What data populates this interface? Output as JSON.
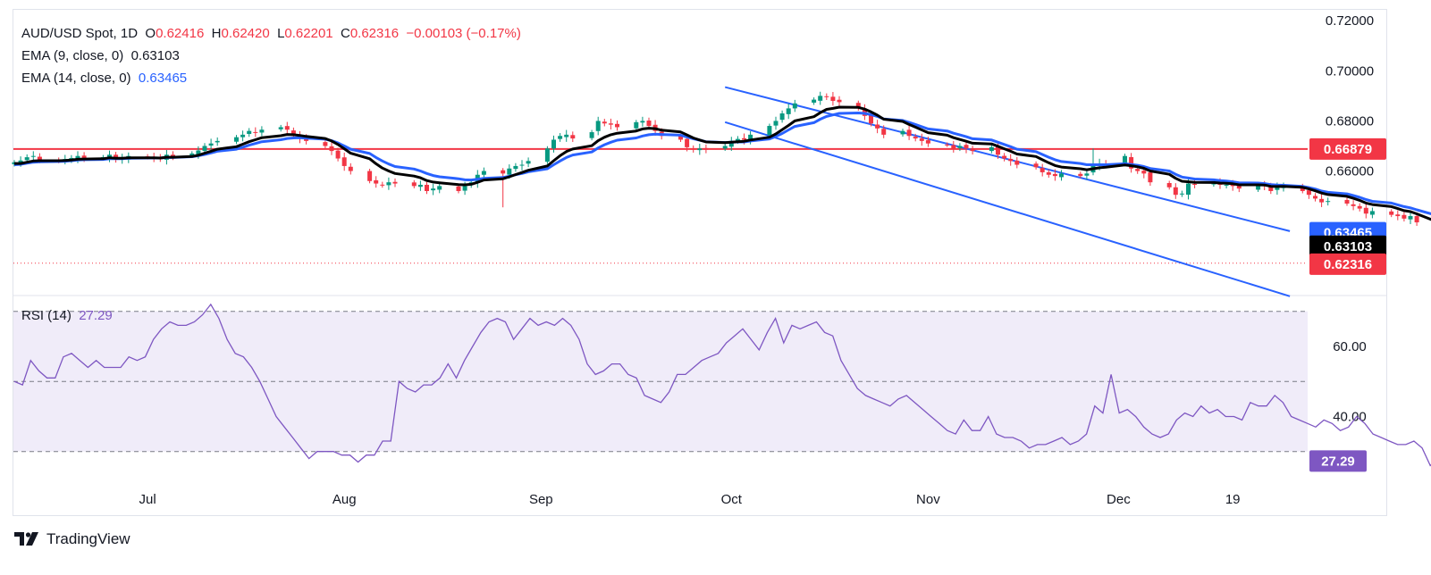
{
  "legend": {
    "symbol": "AUD/USD Spot, 1D",
    "o_label": "O",
    "o": "0.62416",
    "h_label": "H",
    "h": "0.62420",
    "l_label": "L",
    "l": "0.62201",
    "c_label": "C",
    "c": "0.62316",
    "change": "−0.00103 (−0.17%)",
    "ema9_label": "EMA (9, close, 0)",
    "ema9_value": "0.63103",
    "ema14_label": "EMA (14, close, 0)",
    "ema14_value": "0.63465",
    "rsi_label": "RSI (14)",
    "rsi_value": "27.29"
  },
  "price_axis": {
    "ticks": [
      "0.72000",
      "0.70000",
      "0.68000",
      "0.66000"
    ]
  },
  "rsi_axis": {
    "ticks": [
      "60.00",
      "40.00"
    ]
  },
  "x_axis": {
    "ticks": [
      "Jul",
      "Aug",
      "Sep",
      "Oct",
      "Nov",
      "Dec",
      "19"
    ]
  },
  "badges": {
    "resistance": "0.66879",
    "ema14": "0.63465",
    "ema9": "0.63103",
    "close": "0.62316",
    "rsi": "27.29"
  },
  "branding": {
    "name": "TradingView"
  },
  "colors": {
    "up": "#089981",
    "down": "#f23645",
    "ema9": "#000000",
    "ema14": "#2962ff",
    "channel": "#2962ff",
    "resistance": "#f23645",
    "rsi": "#7e57c2",
    "rsi_band": "#f0ecf9"
  },
  "chart_data": [
    {
      "type": "candlestick",
      "title": "AUD/USD Spot, 1D",
      "ylim": [
        0.611,
        0.724
      ],
      "x": [
        "2024-06-10",
        "2024-12-20"
      ],
      "closes": [
        0.6635,
        0.6642,
        0.6655,
        0.666,
        0.6645,
        0.664,
        0.6648,
        0.6652,
        0.666,
        0.665,
        0.6655,
        0.6665,
        0.6645,
        0.665,
        0.666,
        0.6655,
        0.6652,
        0.6648,
        0.6665,
        0.6658,
        0.667,
        0.6682,
        0.67,
        0.671,
        0.672,
        0.6735,
        0.6745,
        0.676,
        0.6755,
        0.6765,
        0.6775,
        0.6765,
        0.674,
        0.673,
        0.672,
        0.67,
        0.668,
        0.665,
        0.662,
        0.66,
        0.656,
        0.655,
        0.6545,
        0.6555,
        0.655,
        0.654,
        0.6545,
        0.652,
        0.653,
        0.654,
        0.652,
        0.654,
        0.6555,
        0.6585,
        0.66,
        0.659,
        0.661,
        0.662,
        0.6625,
        0.664,
        0.669,
        0.6725,
        0.674,
        0.6745,
        0.673,
        0.6755,
        0.68,
        0.679,
        0.6785,
        0.6775,
        0.6795,
        0.68,
        0.678,
        0.676,
        0.674,
        0.6725,
        0.6695,
        0.6685,
        0.669,
        0.6685,
        0.67,
        0.672,
        0.6728,
        0.6725,
        0.6745,
        0.678,
        0.68,
        0.683,
        0.685,
        0.687,
        0.6885,
        0.69,
        0.6895,
        0.688,
        0.6875,
        0.685,
        0.682,
        0.679,
        0.677,
        0.6745,
        0.676,
        0.674,
        0.673,
        0.672,
        0.671,
        0.6705,
        0.669,
        0.67,
        0.669,
        0.668,
        0.6695,
        0.6665,
        0.665,
        0.664,
        0.6625,
        0.6615,
        0.6595,
        0.6585,
        0.658,
        0.659,
        0.658,
        0.659,
        0.6625,
        0.663,
        0.6625,
        0.666,
        0.661,
        0.66,
        0.659,
        0.6555,
        0.6535,
        0.6505,
        0.651,
        0.655,
        0.6545,
        0.655,
        0.6545,
        0.6545,
        0.654,
        0.653,
        0.6545,
        0.654,
        0.652,
        0.6535,
        0.654,
        0.652,
        0.6505,
        0.649,
        0.6475,
        0.648,
        0.647,
        0.646,
        0.645,
        0.643,
        0.644,
        0.6425,
        0.642,
        0.641,
        0.642,
        0.6395,
        0.628,
        0.625,
        0.6242,
        0.6232
      ],
      "ema9": [
        0.663,
        0.663,
        0.6635,
        0.664,
        0.6641,
        0.6641,
        0.6642,
        0.6644,
        0.6647,
        0.6648,
        0.6649,
        0.6653,
        0.6651,
        0.6651,
        0.6653,
        0.6653,
        0.6653,
        0.6652,
        0.6655,
        0.6655,
        0.6658,
        0.6663,
        0.6671,
        0.6679,
        0.6687,
        0.6697,
        0.6707,
        0.6717,
        0.6725,
        0.6733,
        0.6741,
        0.6746,
        0.6745,
        0.6742,
        0.6738,
        0.673,
        0.672,
        0.6706,
        0.6689,
        0.6671,
        0.6649,
        0.6629,
        0.6612,
        0.66,
        0.659,
        0.658,
        0.6573,
        0.6562,
        0.6556,
        0.6553,
        0.6546,
        0.6545,
        0.6547,
        0.6555,
        0.6564,
        0.6569,
        0.6577,
        0.6586,
        0.6594,
        0.6603,
        0.662,
        0.6641,
        0.6661,
        0.6678,
        0.6688,
        0.6701,
        0.6721,
        0.6735,
        0.6745,
        0.6751,
        0.676,
        0.6768,
        0.6771,
        0.6769,
        0.6763,
        0.6756,
        0.6744,
        0.6732,
        0.6724,
        0.6716,
        0.6713,
        0.6715,
        0.6717,
        0.6719,
        0.6724,
        0.6735,
        0.6748,
        0.6765,
        0.6782,
        0.68,
        0.6817,
        0.6833,
        0.6846,
        0.685,
        0.6855,
        0.6854,
        0.6847,
        0.6836,
        0.6823,
        0.6807,
        0.6798,
        0.6786,
        0.6775,
        0.6764,
        0.6753,
        0.6743,
        0.6733,
        0.6726,
        0.6719,
        0.6711,
        0.6708,
        0.6699,
        0.6689,
        0.6679,
        0.6668,
        0.6658,
        0.6645,
        0.6633,
        0.6622,
        0.6616,
        0.6609,
        0.6605,
        0.6609,
        0.6613,
        0.6615,
        0.6624,
        0.6621,
        0.6617,
        0.6611,
        0.66,
        0.6587,
        0.6571,
        0.6559,
        0.6557,
        0.6555,
        0.6554,
        0.6552,
        0.6551,
        0.6549,
        0.6545,
        0.6545,
        0.6544,
        0.6539,
        0.6538,
        0.6539,
        0.6535,
        0.6529,
        0.6521,
        0.6512,
        0.6506,
        0.6499,
        0.6491,
        0.6483,
        0.6472,
        0.6466,
        0.6458,
        0.645,
        0.6442,
        0.6438,
        0.6429,
        0.6399,
        0.6369,
        0.6344,
        0.631
      ],
      "ema14": [
        0.6625,
        0.6627,
        0.6631,
        0.6635,
        0.6637,
        0.6638,
        0.6639,
        0.6641,
        0.6644,
        0.6645,
        0.6646,
        0.6649,
        0.6649,
        0.6649,
        0.6651,
        0.6652,
        0.6652,
        0.6652,
        0.6654,
        0.6654,
        0.6657,
        0.6661,
        0.6666,
        0.6672,
        0.6679,
        0.6687,
        0.6695,
        0.6703,
        0.671,
        0.6717,
        0.6725,
        0.673,
        0.6732,
        0.6733,
        0.6731,
        0.6727,
        0.6721,
        0.6712,
        0.67,
        0.6687,
        0.667,
        0.6654,
        0.664,
        0.6628,
        0.6618,
        0.6608,
        0.66,
        0.659,
        0.6582,
        0.6577,
        0.6569,
        0.6565,
        0.6564,
        0.6567,
        0.6571,
        0.6574,
        0.6579,
        0.6585,
        0.659,
        0.6597,
        0.6609,
        0.6625,
        0.664,
        0.6654,
        0.6664,
        0.6676,
        0.6692,
        0.6705,
        0.6715,
        0.6723,
        0.6732,
        0.674,
        0.6745,
        0.6747,
        0.6746,
        0.6743,
        0.6736,
        0.6729,
        0.6723,
        0.6717,
        0.6714,
        0.6715,
        0.6716,
        0.6716,
        0.672,
        0.6728,
        0.6738,
        0.675,
        0.6764,
        0.6778,
        0.6793,
        0.6807,
        0.6818,
        0.6824,
        0.683,
        0.6832,
        0.683,
        0.6825,
        0.6818,
        0.6808,
        0.6802,
        0.6794,
        0.6786,
        0.6777,
        0.6768,
        0.676,
        0.6751,
        0.6744,
        0.6737,
        0.6729,
        0.6724,
        0.6715,
        0.6706,
        0.6697,
        0.6687,
        0.6677,
        0.6666,
        0.6655,
        0.6645,
        0.6638,
        0.663,
        0.6625,
        0.6625,
        0.6625,
        0.6625,
        0.6629,
        0.6626,
        0.6623,
        0.6618,
        0.661,
        0.66,
        0.6587,
        0.6576,
        0.6572,
        0.6568,
        0.6565,
        0.6562,
        0.656,
        0.6557,
        0.6553,
        0.6552,
        0.655,
        0.6546,
        0.6544,
        0.6543,
        0.6539,
        0.6534,
        0.6528,
        0.652,
        0.6515,
        0.6509,
        0.6502,
        0.6495,
        0.6486,
        0.6479,
        0.6472,
        0.6465,
        0.6458,
        0.6453,
        0.6445,
        0.6424,
        0.64,
        0.6378,
        0.6347
      ],
      "resistance_level": 0.66879,
      "channel": {
        "upper": [
          [
            "2024-09-30",
            0.6935
          ],
          [
            "2024-12-28",
            0.636
          ]
        ],
        "lower": [
          [
            "2024-09-30",
            0.6795
          ],
          [
            "2024-12-28",
            0.61
          ]
        ]
      }
    },
    {
      "type": "line",
      "title": "RSI (14)",
      "ylim": [
        20,
        74
      ],
      "bands": [
        30,
        50,
        70
      ],
      "values": [
        50,
        49,
        56,
        53,
        51,
        51,
        57,
        58,
        56,
        54,
        56,
        54,
        54,
        54,
        57,
        56,
        57,
        62,
        65,
        67,
        66,
        66,
        67,
        69,
        72,
        68,
        62,
        58,
        57,
        54,
        50,
        45,
        40,
        37,
        34,
        31,
        28,
        30,
        30,
        30,
        29,
        29,
        27,
        29,
        29,
        33,
        33,
        50,
        48,
        47,
        49,
        49,
        51,
        55,
        51,
        56,
        60,
        64,
        67,
        68,
        67,
        62,
        65,
        68,
        66,
        67,
        66,
        68,
        66,
        62,
        55,
        52,
        53,
        55,
        55,
        52,
        51,
        46,
        45,
        44,
        47,
        52,
        52,
        54,
        56,
        57,
        58,
        61,
        63,
        65,
        62,
        59,
        64,
        68,
        61,
        66,
        65,
        66,
        67,
        64,
        63,
        56,
        52,
        48,
        46,
        45,
        44,
        43,
        45,
        46,
        44,
        42,
        40,
        38,
        36,
        35,
        39,
        36,
        36,
        40,
        35,
        34,
        34,
        33,
        31,
        32,
        32,
        33,
        34,
        32,
        33,
        35,
        43,
        41,
        52,
        41,
        42,
        40,
        37,
        35,
        34,
        35,
        39,
        41,
        40,
        43,
        41,
        42,
        40,
        40,
        39,
        44,
        43,
        43,
        46,
        44,
        40,
        39,
        38,
        37,
        39,
        38,
        36,
        37,
        40,
        38,
        35,
        34,
        33,
        32,
        32,
        33,
        31,
        26,
        28,
        29,
        28
      ],
      "current": 27.29
    }
  ]
}
